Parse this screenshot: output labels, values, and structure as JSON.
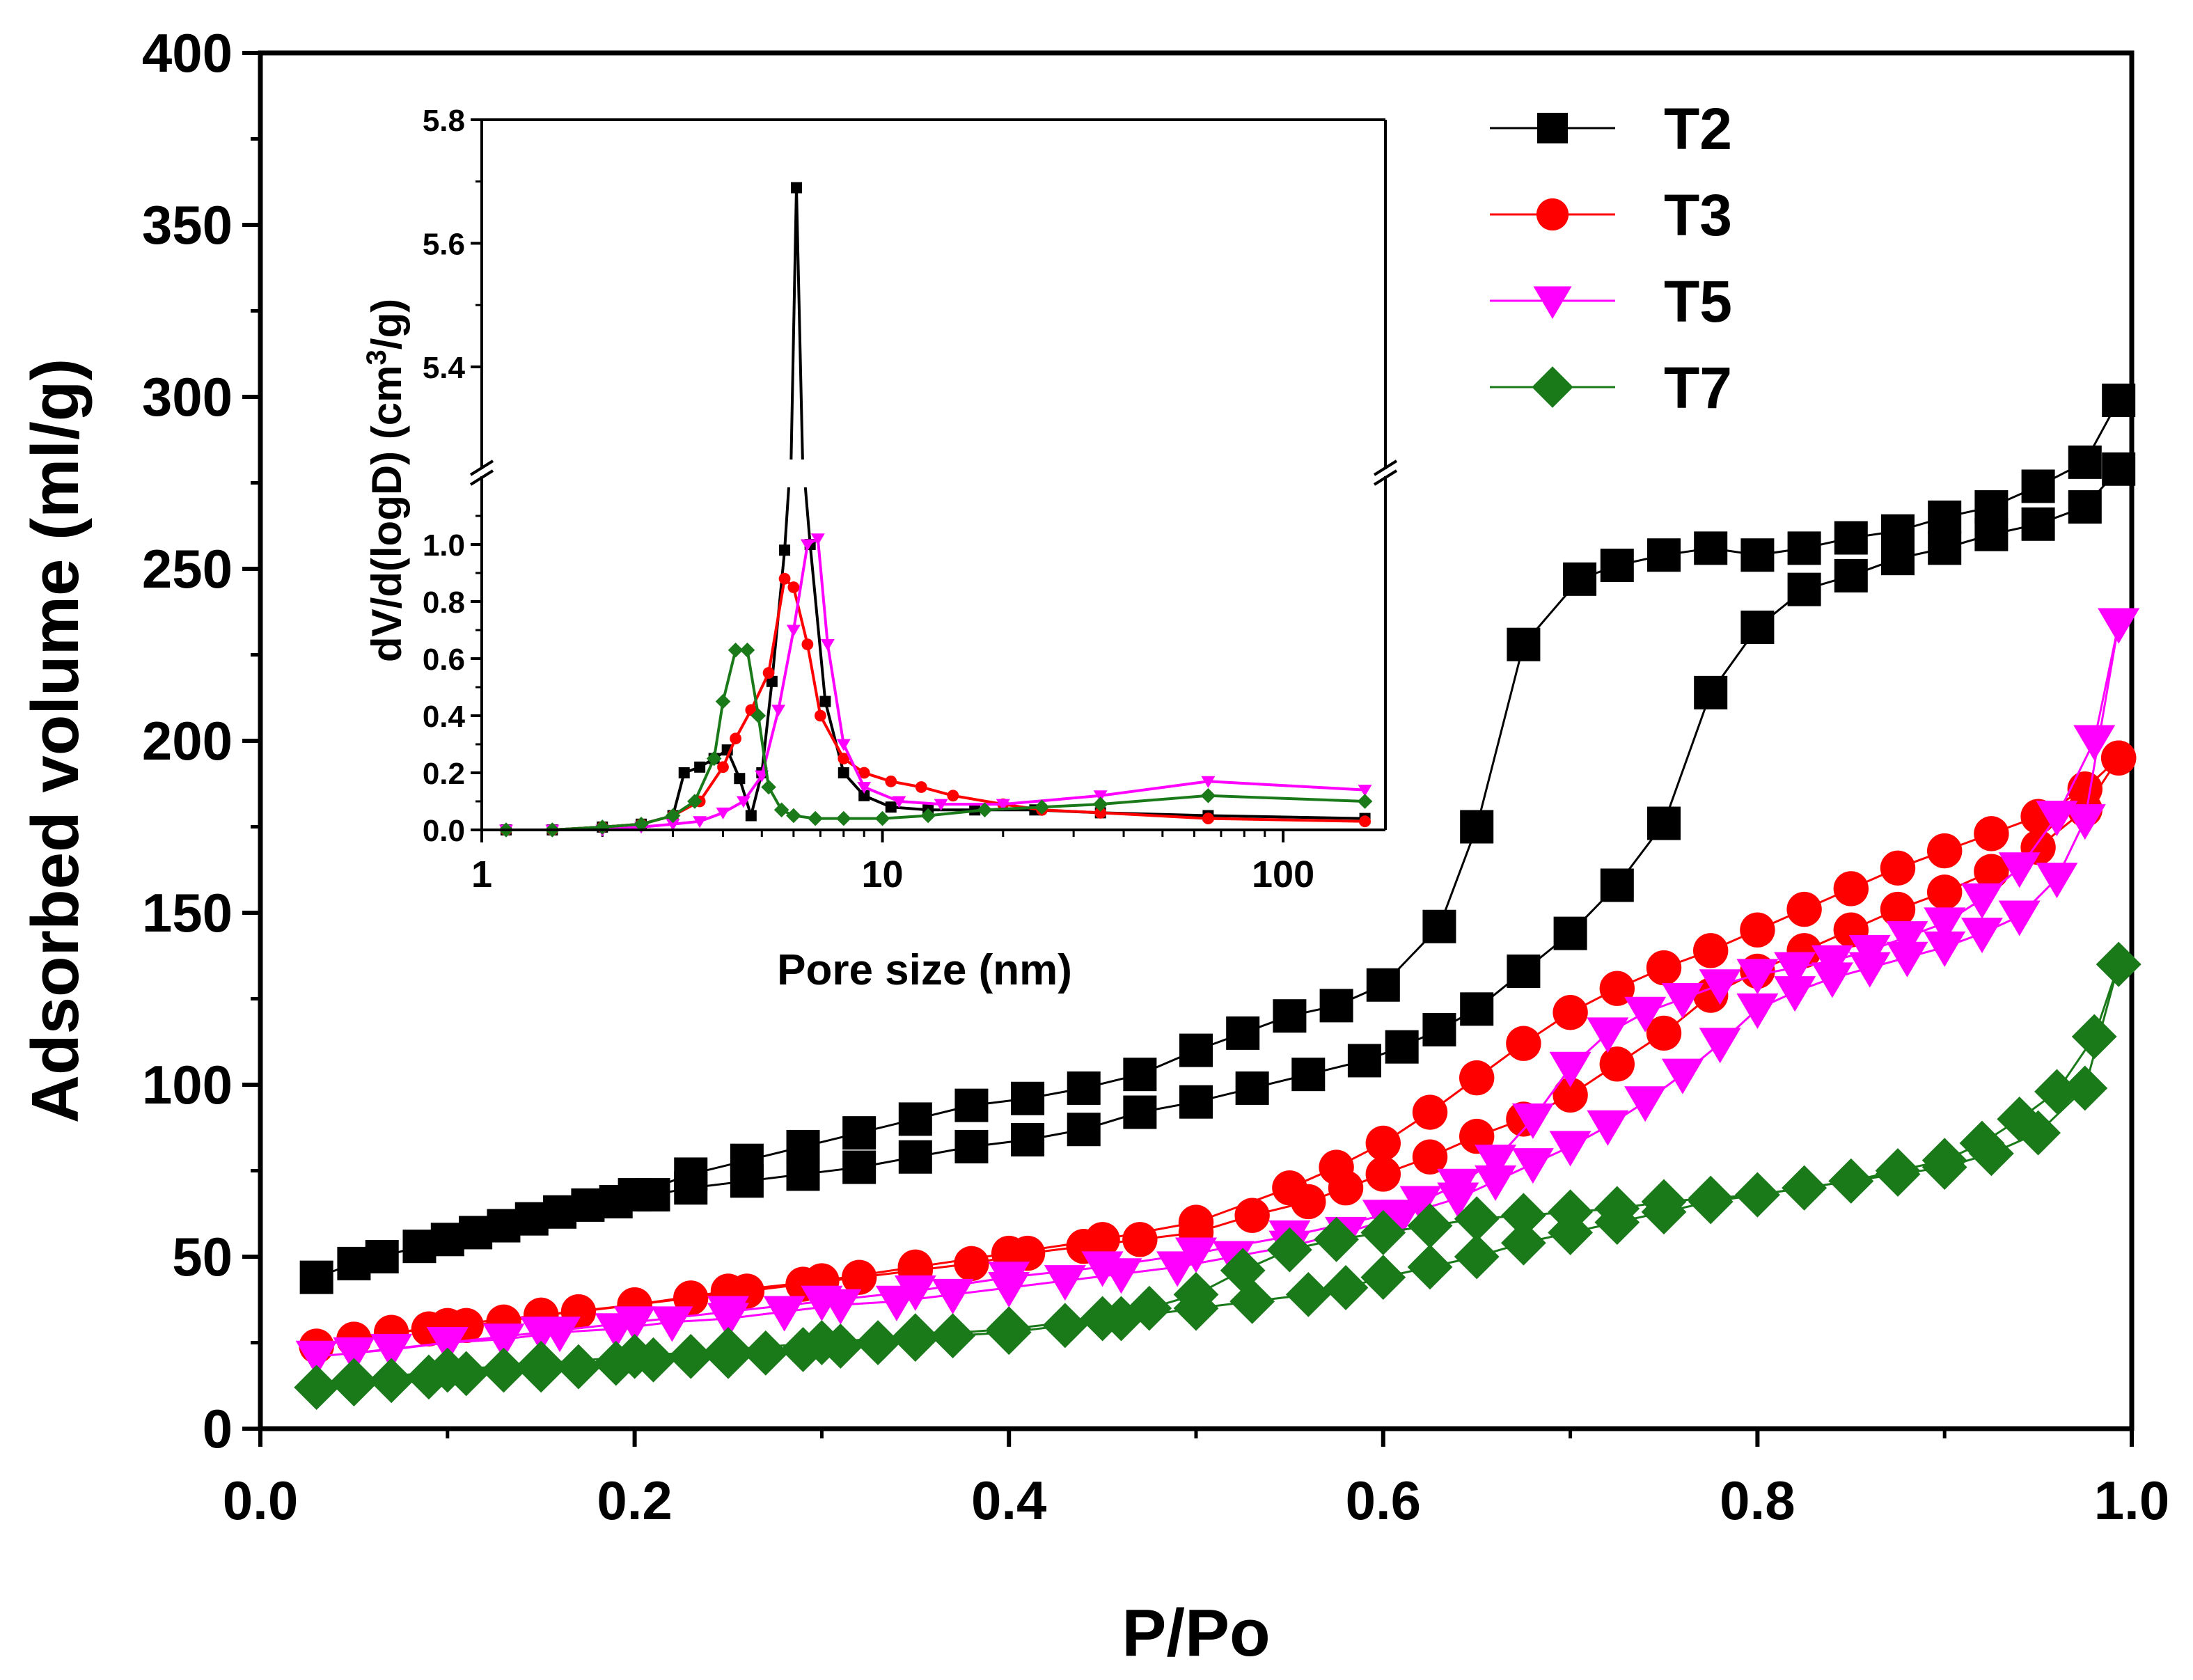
{
  "chart_data": [
    {
      "id": "main",
      "type": "line",
      "title": "",
      "xlabel": "P/Po",
      "ylabel": "Adsorbed volume (ml/g)",
      "xlim": [
        0.0,
        1.0
      ],
      "ylim": [
        0,
        400
      ],
      "xticks": [
        0.0,
        0.2,
        0.4,
        0.6,
        0.8,
        1.0
      ],
      "xtick_labels": [
        "0.0",
        "0.2",
        "0.4",
        "0.6",
        "0.8",
        "1.0"
      ],
      "yticks": [
        0,
        50,
        100,
        150,
        200,
        250,
        300,
        350,
        400
      ],
      "ytick_labels": [
        "0",
        "50",
        "100",
        "150",
        "200",
        "250",
        "300",
        "350",
        "400"
      ],
      "grid": false,
      "legend_position": "top-right",
      "series": [
        {
          "name": "T2",
          "color": "#000000",
          "marker": "square",
          "adsorption": {
            "x": [
              0.03,
              0.05,
              0.065,
              0.085,
              0.1,
              0.115,
              0.13,
              0.145,
              0.16,
              0.175,
              0.19,
              0.21,
              0.23,
              0.26,
              0.29,
              0.32,
              0.35,
              0.38,
              0.41,
              0.44,
              0.47,
              0.5,
              0.53,
              0.56,
              0.59,
              0.61,
              0.63,
              0.65,
              0.675,
              0.7,
              0.725,
              0.75,
              0.775,
              0.8,
              0.825,
              0.85,
              0.875,
              0.9,
              0.925,
              0.95,
              0.975,
              0.993
            ],
            "y": [
              44,
              48,
              50,
              53,
              55,
              57,
              59,
              61,
              63,
              65,
              66,
              68,
              70,
              72,
              74,
              76,
              79,
              82,
              84,
              87,
              92,
              95,
              99,
              103,
              107,
              111,
              116,
              122,
              133,
              144,
              158,
              176,
              214,
              233,
              244,
              248,
              253,
              256,
              260,
              263,
              268,
              279
            ]
          },
          "desorption": {
            "x": [
              0.993,
              0.975,
              0.95,
              0.925,
              0.9,
              0.875,
              0.85,
              0.825,
              0.8,
              0.775,
              0.75,
              0.725,
              0.705,
              0.675,
              0.65,
              0.63,
              0.6,
              0.575,
              0.55,
              0.525,
              0.5,
              0.47,
              0.44,
              0.41,
              0.38,
              0.35,
              0.32,
              0.29,
              0.26,
              0.23,
              0.2
            ],
            "y": [
              299,
              281,
              274,
              268,
              265,
              261,
              259,
              256,
              254,
              256,
              254,
              251,
              247,
              228,
              175,
              146,
              129,
              123,
              120,
              115,
              110,
              103,
              99,
              96,
              94,
              90,
              86,
              82,
              78,
              74,
              68
            ]
          }
        },
        {
          "name": "T3",
          "color": "#ff0000",
          "marker": "circle",
          "adsorption": {
            "x": [
              0.03,
              0.05,
              0.07,
              0.09,
              0.11,
              0.13,
              0.15,
              0.17,
              0.2,
              0.23,
              0.26,
              0.29,
              0.32,
              0.35,
              0.38,
              0.41,
              0.44,
              0.47,
              0.5,
              0.53,
              0.56,
              0.58,
              0.6,
              0.625,
              0.65,
              0.675,
              0.7,
              0.725,
              0.75,
              0.775,
              0.8,
              0.825,
              0.85,
              0.875,
              0.9,
              0.925,
              0.95,
              0.975,
              0.993
            ],
            "y": [
              24,
              26,
              28,
              29,
              30,
              31,
              33,
              34,
              36,
              38,
              40,
              42,
              44,
              46,
              48,
              51,
              53,
              55,
              57,
              62,
              66,
              70,
              74,
              79,
              85,
              90,
              97,
              106,
              115,
              126,
              133,
              139,
              145,
              151,
              156,
              162,
              169,
              180,
              195
            ]
          },
          "desorption": {
            "x": [
              0.993,
              0.975,
              0.95,
              0.925,
              0.9,
              0.875,
              0.85,
              0.825,
              0.8,
              0.775,
              0.75,
              0.725,
              0.7,
              0.675,
              0.65,
              0.625,
              0.6,
              0.575,
              0.55,
              0.5,
              0.45,
              0.4,
              0.35,
              0.3,
              0.25,
              0.2,
              0.15,
              0.1,
              0.05
            ],
            "y": [
              195,
              186,
              178,
              173,
              168,
              163,
              157,
              151,
              145,
              139,
              134,
              128,
              121,
              112,
              102,
              92,
              83,
              76,
              70,
              60,
              55,
              51,
              47,
              43,
              40,
              36,
              33,
              30,
              26
            ]
          }
        },
        {
          "name": "T5",
          "color": "#ff00ff",
          "marker": "triangle-down",
          "adsorption": {
            "x": [
              0.03,
              0.05,
              0.07,
              0.1,
              0.13,
              0.16,
              0.19,
              0.22,
              0.25,
              0.28,
              0.31,
              0.34,
              0.37,
              0.4,
              0.43,
              0.46,
              0.49,
              0.52,
              0.55,
              0.58,
              0.61,
              0.64,
              0.66,
              0.68,
              0.7,
              0.72,
              0.74,
              0.76,
              0.78,
              0.8,
              0.82,
              0.84,
              0.86,
              0.88,
              0.9,
              0.92,
              0.94,
              0.96,
              0.975,
              0.993
            ],
            "y": [
              21,
              22,
              23,
              25,
              26,
              28,
              29,
              31,
              32,
              34,
              36,
              37,
              39,
              41,
              43,
              45,
              47,
              50,
              53,
              57,
              62,
              67,
              72,
              77,
              82,
              88,
              95,
              103,
              112,
              122,
              127,
              131,
              134,
              137,
              140,
              144,
              149,
              160,
              177,
              234
            ]
          },
          "desorption": {
            "x": [
              0.993,
              0.98,
              0.96,
              0.94,
              0.92,
              0.9,
              0.88,
              0.86,
              0.84,
              0.82,
              0.8,
              0.78,
              0.76,
              0.74,
              0.72,
              0.7,
              0.68,
              0.66,
              0.64,
              0.62,
              0.6,
              0.55,
              0.5,
              0.45,
              0.4,
              0.35,
              0.3,
              0.25,
              0.2,
              0.15,
              0.1,
              0.05
            ],
            "y": [
              234,
              200,
              178,
              163,
              154,
              147,
              143,
              139,
              136,
              134,
              132,
              129,
              125,
              121,
              115,
              105,
              90,
              78,
              71,
              66,
              62,
              56,
              51,
              47,
              44,
              40,
              37,
              34,
              31,
              28,
              25,
              22
            ]
          }
        },
        {
          "name": "T7",
          "color": "#1a7a1a",
          "marker": "diamond",
          "adsorption": {
            "x": [
              0.03,
              0.05,
              0.07,
              0.09,
              0.11,
              0.13,
              0.15,
              0.17,
              0.19,
              0.21,
              0.23,
              0.25,
              0.27,
              0.29,
              0.31,
              0.33,
              0.35,
              0.37,
              0.4,
              0.43,
              0.46,
              0.5,
              0.53,
              0.56,
              0.58,
              0.6,
              0.625,
              0.65,
              0.675,
              0.7,
              0.725,
              0.75,
              0.775,
              0.8,
              0.825,
              0.85,
              0.875,
              0.9,
              0.925,
              0.95,
              0.975,
              0.993
            ],
            "y": [
              12,
              13,
              14,
              15,
              16,
              17,
              17,
              18,
              19,
              20,
              21,
              21,
              22,
              23,
              24,
              25,
              26,
              27,
              28,
              30,
              32,
              35,
              37,
              39,
              41,
              44,
              47,
              50,
              54,
              57,
              60,
              63,
              66,
              68,
              70,
              72,
              74,
              76,
              80,
              86,
              99,
              135
            ]
          },
          "desorption": {
            "x": [
              0.993,
              0.98,
              0.96,
              0.94,
              0.92,
              0.9,
              0.875,
              0.85,
              0.825,
              0.8,
              0.775,
              0.75,
              0.725,
              0.7,
              0.675,
              0.65,
              0.625,
              0.6,
              0.575,
              0.55,
              0.525,
              0.5,
              0.475,
              0.45,
              0.4,
              0.35,
              0.3,
              0.25,
              0.2,
              0.15,
              0.1,
              0.05
            ],
            "y": [
              135,
              114,
              98,
              90,
              83,
              78,
              75,
              72,
              70,
              68,
              67,
              66,
              64,
              63,
              62,
              61,
              59,
              57,
              55,
              52,
              46,
              39,
              35,
              32,
              29,
              27,
              25,
              23,
              21,
              19,
              17,
              14
            ]
          }
        }
      ]
    },
    {
      "id": "inset",
      "type": "line",
      "title": "",
      "xlabel": "Pore size (nm)",
      "ylabel": "dV/d(logD) (cm³/g)",
      "xscale": "log",
      "xlim": [
        1,
        180
      ],
      "ylim_lower": [
        0.0,
        1.2
      ],
      "ylim_upper": [
        5.25,
        5.8
      ],
      "axis_break": true,
      "xticks": [
        1,
        10,
        100
      ],
      "xtick_labels": [
        "1",
        "10",
        "100"
      ],
      "yticks_lower": [
        0.0,
        0.2,
        0.4,
        0.6,
        0.8,
        1.0
      ],
      "ytick_labels_lower": [
        "0.0",
        "0.2",
        "0.4",
        "0.6",
        "0.8",
        "1.0"
      ],
      "yticks_upper": [
        5.4,
        5.6,
        5.8
      ],
      "ytick_labels_upper": [
        "5.4",
        "5.6",
        "5.8"
      ],
      "series": [
        {
          "name": "T2",
          "color": "#000000",
          "marker": "square",
          "x": [
            1.15,
            1.5,
            2.0,
            2.5,
            3.0,
            3.2,
            3.5,
            3.8,
            4.1,
            4.4,
            4.7,
            5.0,
            5.3,
            5.7,
            6.1,
            6.6,
            7.2,
            8.0,
            9.0,
            10.5,
            13,
            17,
            24,
            35,
            65,
            160
          ],
          "y": [
            0.0,
            0.0,
            0.01,
            0.02,
            0.05,
            0.2,
            0.22,
            0.25,
            0.28,
            0.18,
            0.05,
            0.2,
            0.52,
            0.98,
            5.69,
            1.0,
            0.45,
            0.2,
            0.12,
            0.08,
            0.07,
            0.07,
            0.07,
            0.06,
            0.05,
            0.04
          ]
        },
        {
          "name": "T3",
          "color": "#ff0000",
          "marker": "circle",
          "x": [
            1.15,
            1.5,
            2.0,
            2.5,
            3.0,
            3.5,
            4.0,
            4.3,
            4.7,
            5.2,
            5.7,
            6.0,
            6.5,
            7.0,
            8.0,
            9.0,
            10.5,
            12.5,
            15,
            20,
            25,
            35,
            65,
            160
          ],
          "y": [
            0.0,
            0.0,
            0.01,
            0.02,
            0.05,
            0.1,
            0.22,
            0.32,
            0.42,
            0.55,
            0.88,
            0.85,
            0.65,
            0.4,
            0.25,
            0.2,
            0.17,
            0.15,
            0.12,
            0.09,
            0.07,
            0.06,
            0.04,
            0.03
          ]
        },
        {
          "name": "T5",
          "color": "#ff00ff",
          "marker": "triangle-down",
          "x": [
            1.15,
            1.5,
            2.0,
            2.5,
            3.0,
            3.5,
            4.0,
            4.5,
            5.0,
            5.5,
            6.0,
            6.5,
            6.9,
            7.3,
            8.0,
            9.0,
            11,
            14,
            20,
            35,
            65,
            160
          ],
          "y": [
            0.0,
            0.0,
            0.0,
            0.01,
            0.02,
            0.03,
            0.06,
            0.1,
            0.19,
            0.42,
            0.7,
            1.0,
            1.02,
            0.65,
            0.3,
            0.15,
            0.1,
            0.09,
            0.09,
            0.12,
            0.17,
            0.14
          ]
        },
        {
          "name": "T7",
          "color": "#1a7a1a",
          "marker": "diamond",
          "x": [
            1.15,
            1.5,
            2.0,
            2.5,
            3.0,
            3.4,
            3.8,
            4.0,
            4.3,
            4.6,
            4.9,
            5.2,
            5.6,
            6.0,
            6.8,
            8.0,
            10,
            13,
            18,
            25,
            35,
            65,
            160
          ],
          "y": [
            0.0,
            0.0,
            0.01,
            0.02,
            0.05,
            0.1,
            0.25,
            0.45,
            0.63,
            0.63,
            0.4,
            0.15,
            0.07,
            0.05,
            0.04,
            0.04,
            0.04,
            0.05,
            0.07,
            0.08,
            0.09,
            0.12,
            0.1
          ]
        }
      ]
    }
  ],
  "legend": [
    "T2",
    "T3",
    "T5",
    "T7"
  ]
}
